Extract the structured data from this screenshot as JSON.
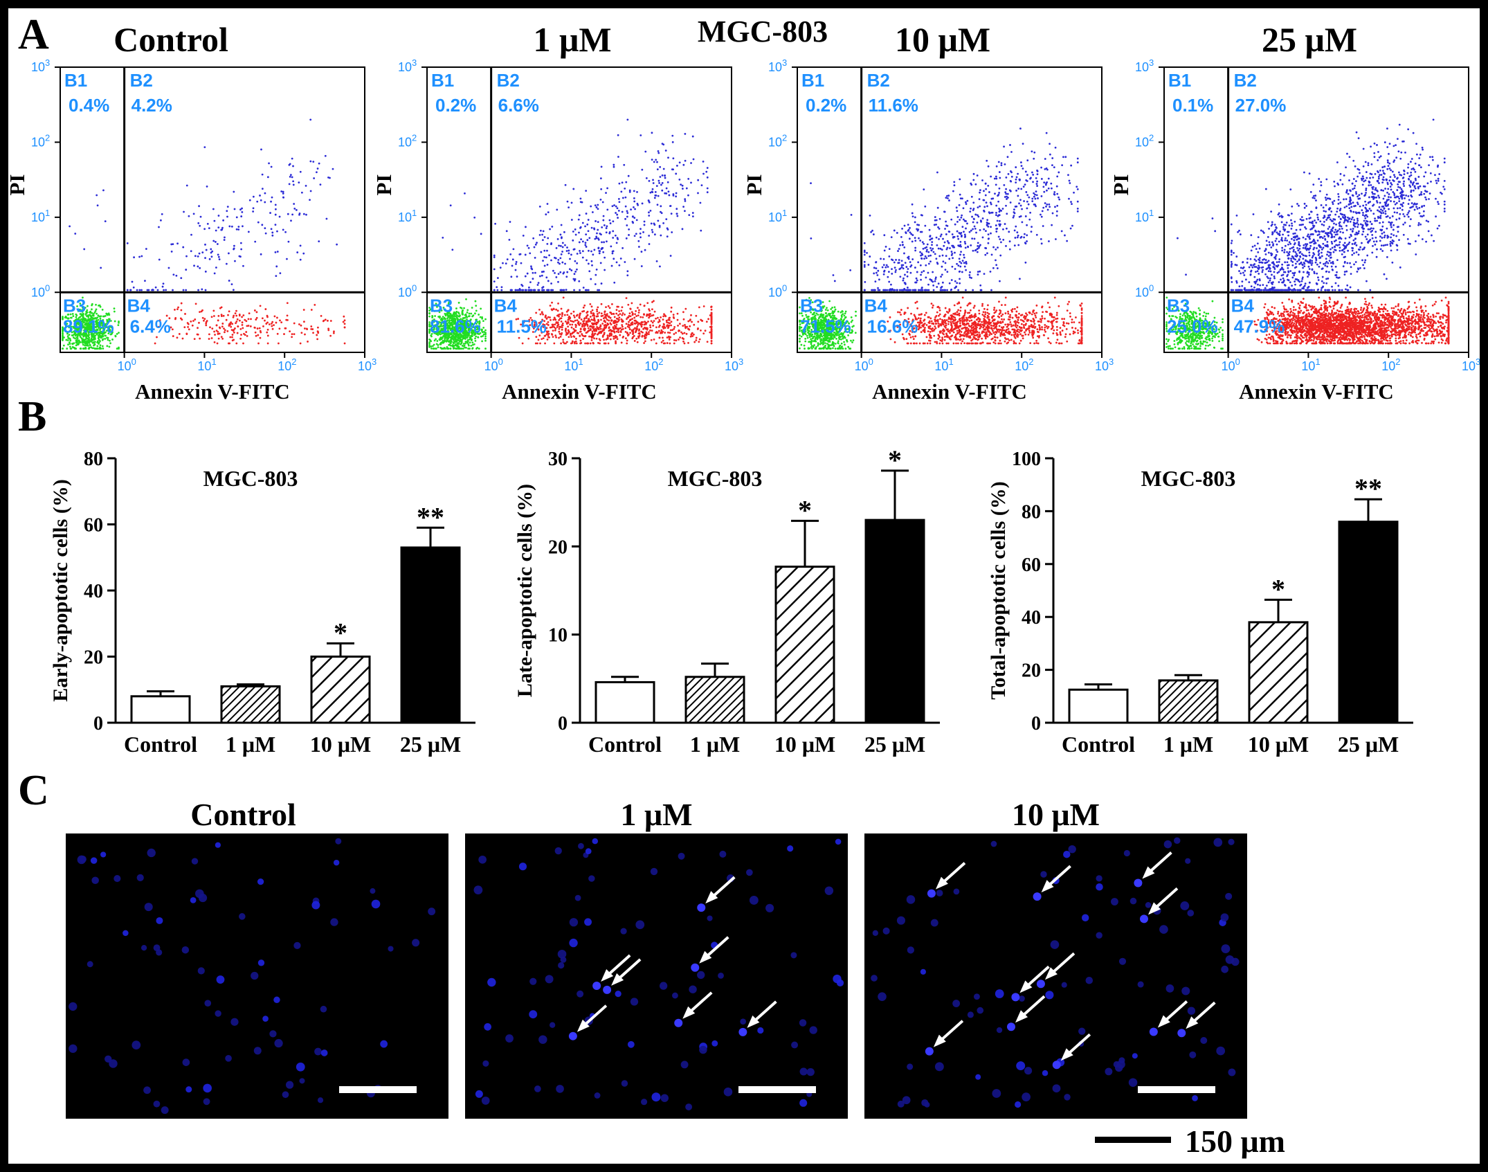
{
  "figure": {
    "panel_a_label": "A",
    "panel_b_label": "B",
    "panel_c_label": "C",
    "cell_line": "MGC-803"
  },
  "colors": {
    "green": "#22dd22",
    "red": "#ee2222",
    "blue": "#2b2bd6",
    "quad_label": "#1e90ff",
    "nucleus": "#1f24e0"
  },
  "flow": {
    "x_label": "Annexin V-FITC",
    "y_label": "PI",
    "axis_range_log10": [
      -0.8,
      3.0
    ],
    "tick_base": "10",
    "tick_exponents": [
      "0",
      "1",
      "2",
      "3"
    ],
    "panels": [
      {
        "title": "Control",
        "B1": "0.4%",
        "B2": "4.2%",
        "B3": "89.1%",
        "B4": "6.4%",
        "density": {
          "B1": 8,
          "B2": 220,
          "B3": 700,
          "B4": 240
        }
      },
      {
        "title": "1 μM",
        "B1": "0.2%",
        "B2": "6.6%",
        "B3": "81.6%",
        "B4": "11.5%",
        "density": {
          "B1": 6,
          "B2": 520,
          "B3": 820,
          "B4": 900
        }
      },
      {
        "title": "10 μM",
        "B1": "0.2%",
        "B2": "11.6%",
        "B3": "71.5%",
        "B4": "16.6%",
        "density": {
          "B1": 6,
          "B2": 800,
          "B3": 720,
          "B4": 1100
        }
      },
      {
        "title": "25 μM",
        "B1": "0.1%",
        "B2": "27.0%",
        "B3": "25.0%",
        "B4": "47.9%",
        "density": {
          "B1": 4,
          "B2": 1600,
          "B3": 500,
          "B4": 2800
        }
      }
    ],
    "quadrant_names": [
      "B1",
      "B2",
      "B3",
      "B4"
    ]
  },
  "chart_data": [
    {
      "type": "bar",
      "title": "MGC-803",
      "ylabel": "Early-apoptotic cells (%)",
      "categories": [
        "Control",
        "1 μM",
        "10 μM",
        "25 μM"
      ],
      "values": [
        8,
        11,
        20,
        53
      ],
      "errors": [
        1.5,
        0.6,
        4,
        6
      ],
      "significance": [
        "",
        "",
        "*",
        "**"
      ],
      "ylim": [
        0,
        80
      ],
      "yticks": [
        0,
        20,
        40,
        60,
        80
      ],
      "fills": [
        "white",
        "dense-hatch",
        "hatch",
        "black"
      ]
    },
    {
      "type": "bar",
      "title": "MGC-803",
      "ylabel": "Late-apoptotic cells (%)",
      "categories": [
        "Control",
        "1 μM",
        "10 μM",
        "25 μM"
      ],
      "values": [
        4.6,
        5.2,
        17.7,
        23
      ],
      "errors": [
        0.6,
        1.5,
        5.2,
        5.6
      ],
      "significance": [
        "",
        "",
        "*",
        "*"
      ],
      "ylim": [
        0,
        30
      ],
      "yticks": [
        0,
        10,
        20,
        30
      ],
      "fills": [
        "white",
        "dense-hatch",
        "hatch",
        "black"
      ]
    },
    {
      "type": "bar",
      "title": "MGC-803",
      "ylabel": "Total-apoptotic cells (%)",
      "categories": [
        "Control",
        "1 μM",
        "10 μM",
        "25 μM"
      ],
      "values": [
        12.5,
        16,
        38,
        76
      ],
      "errors": [
        2,
        2,
        8.5,
        8.5
      ],
      "significance": [
        "",
        "",
        "*",
        "**"
      ],
      "ylim": [
        0,
        100
      ],
      "yticks": [
        0,
        20,
        40,
        60,
        80,
        100
      ],
      "fills": [
        "white",
        "dense-hatch",
        "hatch",
        "black"
      ]
    }
  ],
  "fluorescence": {
    "panels": [
      {
        "title": "Control",
        "arrows": 0
      },
      {
        "title": "1 μM",
        "arrows": 7
      },
      {
        "title": "10 μM",
        "arrows": 11
      }
    ],
    "scale_bar_label": "150 μm"
  }
}
